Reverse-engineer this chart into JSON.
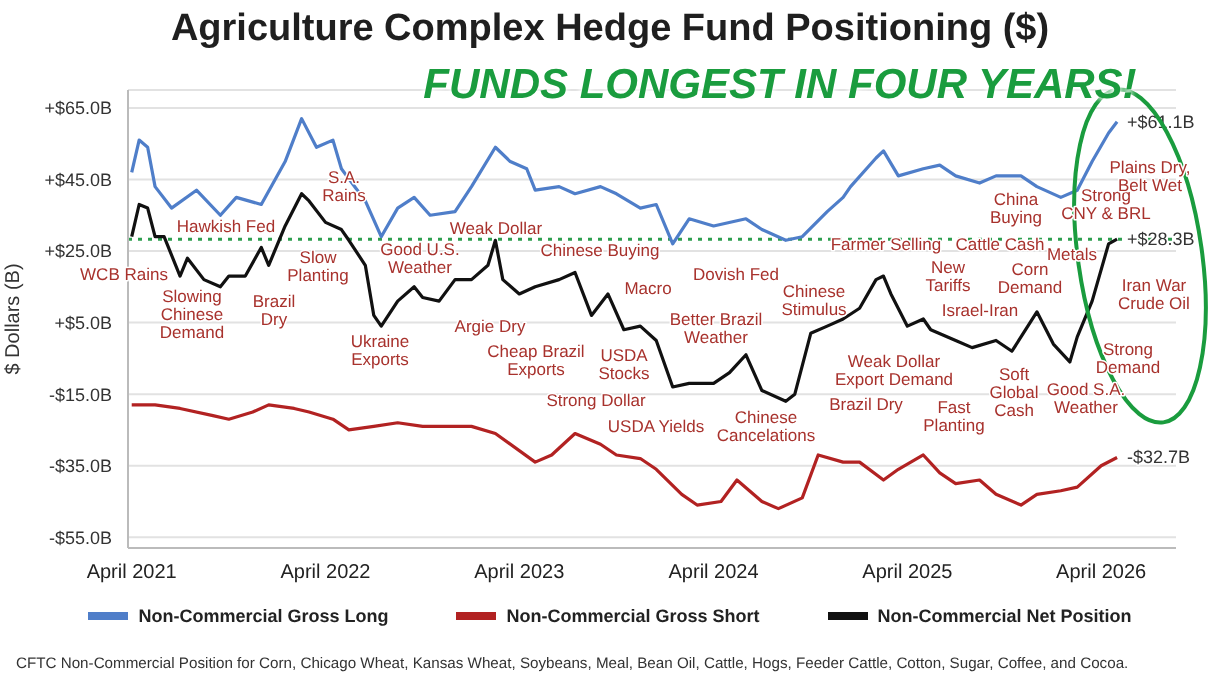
{
  "chart_data": {
    "type": "line",
    "title": "Agriculture Complex Hedge Fund Positioning ($)",
    "subtitle": "FUNDS LONGEST IN FOUR YEARS!",
    "ylabel": "$ Dollars (B)",
    "xlim": [
      "2021-03-25",
      "2026-08-20"
    ],
    "xticks": [
      {
        "value": "2021-04-01",
        "label": "April 2021"
      },
      {
        "value": "2022-04-01",
        "label": "April 2022"
      },
      {
        "value": "2023-04-01",
        "label": "April 2023"
      },
      {
        "value": "2024-04-01",
        "label": "April 2024"
      },
      {
        "value": "2025-04-01",
        "label": "April 2025"
      },
      {
        "value": "2026-04-01",
        "label": "April 2026"
      }
    ],
    "ylim": [
      -58,
      70
    ],
    "yticks": [
      {
        "value": 65,
        "label": "+$65.0B"
      },
      {
        "value": 45,
        "label": "+$45.0B"
      },
      {
        "value": 25,
        "label": "+$25.0B"
      },
      {
        "value": 5,
        "label": "+$5.0B"
      },
      {
        "value": -15,
        "label": "-$15.0B"
      },
      {
        "value": -35,
        "label": "-$35.0B"
      },
      {
        "value": -55,
        "label": "-$55.0B"
      }
    ],
    "grid": "y",
    "legend": "bottom",
    "series": [
      {
        "name": "Non-Commercial Gross Long",
        "color": "#4f7ec9",
        "x": [
          "2021-04-01",
          "2021-04-15",
          "2021-05-01",
          "2021-05-15",
          "2021-06-15",
          "2021-08-01",
          "2021-09-15",
          "2021-10-15",
          "2021-12-01",
          "2022-01-15",
          "2022-02-15",
          "2022-03-15",
          "2022-04-15",
          "2022-05-01",
          "2022-06-15",
          "2022-07-15",
          "2022-08-15",
          "2022-09-15",
          "2022-10-15",
          "2022-12-01",
          "2023-01-01",
          "2023-02-15",
          "2023-03-15",
          "2023-04-15",
          "2023-05-01",
          "2023-06-15",
          "2023-07-15",
          "2023-09-01",
          "2023-10-01",
          "2023-11-15",
          "2023-12-15",
          "2024-01-15",
          "2024-02-15",
          "2024-04-01",
          "2024-06-01",
          "2024-07-01",
          "2024-08-15",
          "2024-09-15",
          "2024-11-01",
          "2024-12-01",
          "2024-12-15",
          "2025-02-01",
          "2025-02-15",
          "2025-03-15",
          "2025-05-01",
          "2025-06-01",
          "2025-07-01",
          "2025-08-15",
          "2025-09-15",
          "2025-11-01",
          "2025-12-01",
          "2026-01-15",
          "2026-02-15",
          "2026-03-15",
          "2026-04-15",
          "2026-05-01"
        ],
        "values": [
          47,
          56,
          54,
          43,
          37,
          42,
          35,
          40,
          38,
          50,
          62,
          54,
          56,
          48,
          39,
          29,
          37,
          40,
          35,
          36,
          43,
          54,
          50,
          48,
          42,
          43,
          41,
          43,
          41,
          37,
          38,
          27,
          34,
          32,
          34,
          31,
          28,
          29,
          36,
          40,
          43,
          51,
          53,
          46,
          48,
          49,
          46,
          44,
          46,
          46,
          43,
          40,
          42,
          50,
          58,
          61.1
        ],
        "value_labels": [
          null,
          null,
          null,
          null,
          null,
          null,
          null,
          null,
          null,
          null,
          null,
          null,
          null,
          null,
          null,
          null,
          null,
          null,
          null,
          null,
          null,
          null,
          null,
          null,
          null,
          null,
          null,
          null,
          null,
          null,
          null,
          null,
          null,
          null,
          null,
          null,
          null,
          null,
          null,
          null,
          null,
          null,
          null,
          null,
          null,
          null,
          null,
          null,
          null,
          null,
          null,
          null,
          null,
          null,
          null,
          "+$61.1B"
        ]
      },
      {
        "name": "Non-Commercial Gross Short",
        "color": "#b22222",
        "x": [
          "2021-04-01",
          "2021-05-15",
          "2021-07-01",
          "2021-09-01",
          "2021-10-01",
          "2021-11-15",
          "2021-12-15",
          "2022-02-01",
          "2022-03-01",
          "2022-04-15",
          "2022-05-15",
          "2022-07-01",
          "2022-08-15",
          "2022-10-01",
          "2022-11-15",
          "2023-01-01",
          "2023-02-15",
          "2023-05-01",
          "2023-06-01",
          "2023-07-15",
          "2023-09-01",
          "2023-10-01",
          "2023-11-15",
          "2023-12-15",
          "2024-02-01",
          "2024-03-01",
          "2024-04-15",
          "2024-05-15",
          "2024-07-01",
          "2024-08-01",
          "2024-09-15",
          "2024-10-15",
          "2024-12-01",
          "2025-01-01",
          "2025-02-15",
          "2025-03-15",
          "2025-05-01",
          "2025-06-01",
          "2025-07-01",
          "2025-08-15",
          "2025-09-15",
          "2025-11-01",
          "2025-12-01",
          "2026-01-15",
          "2026-02-15",
          "2026-04-01",
          "2026-05-01"
        ],
        "values": [
          -18,
          -18,
          -19,
          -21,
          -22,
          -20,
          -18,
          -19,
          -20,
          -22,
          -25,
          -24,
          -23,
          -24,
          -24,
          -24,
          -26,
          -34,
          -32,
          -26,
          -29,
          -32,
          -33,
          -36,
          -43,
          -46,
          -45,
          -39,
          -45,
          -47,
          -44,
          -32,
          -34,
          -34,
          -39,
          -36,
          -32,
          -37,
          -40,
          -39,
          -43,
          -46,
          -43,
          -42,
          -41,
          -35,
          -32.7
        ],
        "value_labels": [
          null,
          null,
          null,
          null,
          null,
          null,
          null,
          null,
          null,
          null,
          null,
          null,
          null,
          null,
          null,
          null,
          null,
          null,
          null,
          null,
          null,
          null,
          null,
          null,
          null,
          null,
          null,
          null,
          null,
          null,
          null,
          null,
          null,
          null,
          null,
          null,
          null,
          null,
          null,
          null,
          null,
          null,
          null,
          null,
          null,
          null,
          "-$32.7B"
        ]
      },
      {
        "name": "Non-Commercial Net Position",
        "color": "#111111",
        "x": [
          "2021-04-01",
          "2021-04-15",
          "2021-05-01",
          "2021-05-15",
          "2021-06-01",
          "2021-07-01",
          "2021-07-15",
          "2021-08-15",
          "2021-09-15",
          "2021-10-01",
          "2021-11-01",
          "2021-12-01",
          "2021-12-15",
          "2022-01-15",
          "2022-02-15",
          "2022-03-01",
          "2022-04-01",
          "2022-05-01",
          "2022-05-15",
          "2022-06-15",
          "2022-07-01",
          "2022-07-15",
          "2022-08-15",
          "2022-09-15",
          "2022-10-01",
          "2022-11-01",
          "2022-12-01",
          "2023-01-01",
          "2023-02-01",
          "2023-02-15",
          "2023-03-01",
          "2023-04-01",
          "2023-05-01",
          "2023-06-15",
          "2023-07-15",
          "2023-08-15",
          "2023-09-15",
          "2023-10-15",
          "2023-11-15",
          "2023-12-15",
          "2024-01-15",
          "2024-02-15",
          "2024-04-01",
          "2024-05-01",
          "2024-06-01",
          "2024-07-01",
          "2024-08-15",
          "2024-09-01",
          "2024-10-01",
          "2024-11-01",
          "2024-12-01",
          "2025-01-01",
          "2025-02-01",
          "2025-02-15",
          "2025-03-01",
          "2025-04-01",
          "2025-05-01",
          "2025-05-15",
          "2025-07-01",
          "2025-08-01",
          "2025-09-15",
          "2025-10-15",
          "2025-12-01",
          "2026-01-01",
          "2026-02-01",
          "2026-02-15",
          "2026-03-15",
          "2026-04-15",
          "2026-05-01"
        ],
        "values": [
          29,
          38,
          37,
          29,
          29,
          18,
          23,
          17,
          15,
          18,
          18,
          26,
          21,
          32,
          41,
          39,
          33,
          31,
          28,
          21,
          7,
          4,
          11,
          15,
          12,
          11,
          17,
          17,
          21,
          28,
          17,
          13,
          15,
          17,
          19,
          7,
          13,
          3,
          4,
          0,
          -13,
          -12,
          -12,
          -9,
          -4,
          -14,
          -17,
          -15,
          2,
          4,
          6,
          9,
          17,
          18,
          13,
          4,
          6,
          3,
          0,
          -2,
          0,
          -3,
          8,
          -1,
          -6,
          1,
          11,
          27,
          28.3
        ],
        "value_labels": [
          null,
          null,
          null,
          null,
          null,
          null,
          null,
          null,
          null,
          null,
          null,
          null,
          null,
          null,
          null,
          null,
          null,
          null,
          null,
          null,
          null,
          null,
          null,
          null,
          null,
          null,
          null,
          null,
          null,
          null,
          null,
          null,
          null,
          null,
          null,
          null,
          null,
          null,
          null,
          null,
          null,
          null,
          null,
          null,
          null,
          null,
          null,
          null,
          null,
          null,
          null,
          null,
          null,
          null,
          null,
          null,
          null,
          null,
          null,
          null,
          null,
          null,
          null,
          null,
          null,
          null,
          null,
          null,
          "+$28.3B"
        ]
      }
    ],
    "ref_lines": [
      {
        "axis": "y",
        "value": 28.3,
        "color": "#2e9e4f",
        "line_style": "dotted"
      }
    ],
    "annotations": [
      "WCB Rains",
      "Hawkish Fed",
      "Slowing\nChinese\nDemand",
      "Brazil\nDry",
      "Slow\nPlanting",
      "S.A.\nRains",
      "Good U.S.\nWeather",
      "Ukraine\nExports",
      "Weak Dollar",
      "Argie Dry",
      "Chinese Buying",
      "Cheap Brazil\nExports",
      "Macro",
      "Better Brazil\nWeather",
      "USDA\nStocks",
      "Strong Dollar",
      "USDA Yields",
      "Dovish Fed",
      "Chinese\nCancelations",
      "Chinese\nStimulus",
      "Brazil Dry",
      "Weak Dollar\nExport Demand",
      "Farmer Selling",
      "New\nTariffs",
      "Israel-Iran",
      "Fast\nPlanting",
      "Soft\nGlobal\nCash",
      "Cattle Cash",
      "Corn\nDemand",
      "China\nBuying",
      "Metals",
      "Strong\nCNY & BRL",
      "Plains Dry,\nBelt Wet",
      "Iran War\nCrude Oil",
      "Strong\nDemand",
      "Good S.A.\nWeather",
      "CFTC Non-Commercial Position for Corn, Chicago Wheat, Kansas Wheat, Soybeans, Meal, Bean Oil, Cattle, Hogs, Feeder Cattle, Cotton, Sugar, Coffee, and Cocoa."
    ]
  }
}
